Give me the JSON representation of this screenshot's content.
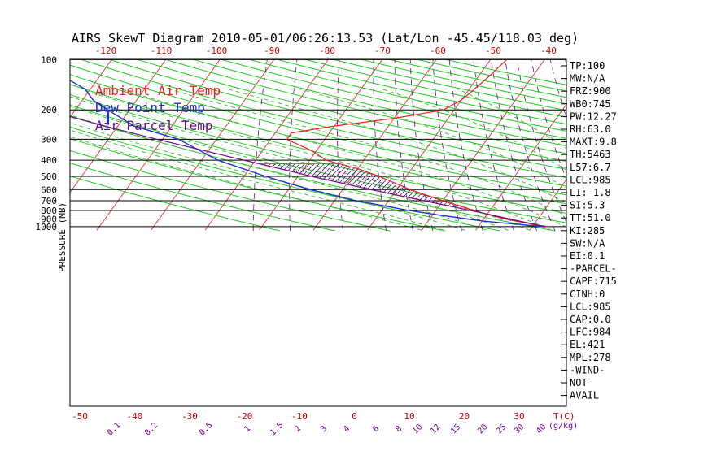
{
  "chart_data": {
    "type": "line",
    "title": "AIRS SkewT Diagram 2010-05-01/06:26:13.53 (Lat/Lon -45.45/118.03 deg)",
    "ylabel": "PRESSURE (MB)",
    "pressure_ticks": [
      "100",
      "200",
      "300",
      "400",
      "500",
      "600",
      "700",
      "800",
      "900",
      "1000"
    ],
    "bottom_temp_ticks": [
      "-50",
      "-40",
      "-30",
      "-20",
      "-10",
      "0",
      "10",
      "20",
      "30"
    ],
    "bottom_temp_unit": "T(C)",
    "top_temp_ticks": [
      "-120",
      "-110",
      "-100",
      "-90",
      "-80",
      "-70",
      "-60",
      "-50",
      "-40"
    ],
    "mixing_ratio_ticks": [
      "0.1",
      "0.2",
      "0.5",
      "1",
      "1.5",
      "2",
      "3",
      "4",
      "6",
      "8",
      "10",
      "12",
      "15",
      "20",
      "25",
      "30",
      "40"
    ],
    "mixing_ratio_unit": "(g/kg)",
    "legend": [
      {
        "label": "Ambient Air Temp",
        "color": "#e82020"
      },
      {
        "label": "Dew Point Temp",
        "color": "#2030d0"
      },
      {
        "label": "Air Parcel Temp",
        "color": "#6a0a8a"
      }
    ],
    "series": [
      {
        "name": "Ambient Air Temp",
        "color": "#e82020",
        "points": [
          [
            1000,
            13
          ],
          [
            975,
            10
          ],
          [
            950,
            8.5
          ],
          [
            925,
            6
          ],
          [
            900,
            4
          ],
          [
            850,
            0.5
          ],
          [
            800,
            -3
          ],
          [
            700,
            -10
          ],
          [
            600,
            -17.5
          ],
          [
            500,
            -25
          ],
          [
            450,
            -30
          ],
          [
            400,
            -37
          ],
          [
            350,
            -41
          ],
          [
            300,
            -47
          ],
          [
            275,
            -47
          ],
          [
            250,
            -40
          ],
          [
            225,
            -30
          ],
          [
            200,
            -22
          ],
          [
            175,
            -20
          ],
          [
            150,
            -19
          ],
          [
            125,
            -18
          ],
          [
            100,
            -17
          ]
        ]
      },
      {
        "name": "Dew Point Temp",
        "color": "#2030d0",
        "points": [
          [
            1000,
            12
          ],
          [
            975,
            8
          ],
          [
            950,
            4
          ],
          [
            925,
            0
          ],
          [
            900,
            -3
          ],
          [
            850,
            -9
          ],
          [
            800,
            -15
          ],
          [
            700,
            -26
          ],
          [
            600,
            -36
          ],
          [
            500,
            -46
          ],
          [
            400,
            -57
          ],
          [
            300,
            -67
          ],
          [
            250,
            -77
          ],
          [
            200,
            -84
          ],
          [
            175,
            -88
          ],
          [
            150,
            -91
          ],
          [
            125,
            -97
          ],
          [
            100,
            -102
          ]
        ]
      },
      {
        "name": "Air Parcel Temp",
        "color": "#6a0a8a",
        "points": [
          [
            1000,
            12.5
          ],
          [
            950,
            8.7
          ],
          [
            900,
            4.8
          ],
          [
            850,
            0.8
          ],
          [
            800,
            -3.6
          ],
          [
            700,
            -13.5
          ],
          [
            600,
            -24.8
          ],
          [
            500,
            -37.5
          ],
          [
            421,
            -48.8
          ],
          [
            400,
            -52.2
          ],
          [
            300,
            -71
          ],
          [
            250,
            -82.5
          ],
          [
            200,
            -95.5
          ],
          [
            150,
            -111
          ],
          [
            100,
            -132
          ]
        ]
      }
    ],
    "ylim": [
      1050,
      100
    ],
    "grid": true
  },
  "stats": [
    "TP:100",
    "MW:N/A",
    "FRZ:900",
    "WB0:745",
    "PW:12.27",
    "RH:63.0",
    "MAXT:9.8",
    "TH:5463",
    "L57:6.7",
    "LCL:985",
    "LI:-1.8",
    "SI:5.3",
    "TT:51.0",
    "KI:285",
    "SW:N/A",
    "EI:0.1",
    "-PARCEL-",
    "CAPE:715",
    "CINH:0",
    "LCL:985",
    "CAP:0.0",
    "LFC:984",
    "EL:421",
    "MPL:278",
    "-WIND-",
    "NOT",
    "AVAIL"
  ],
  "colors": {
    "ambient": "#e82020",
    "dewpoint": "#2030d0",
    "parcel": "#6a0a8a",
    "isotherm": "#e04040",
    "dry_adiabat": "#20cc20",
    "moist_adiabat": "#40c040",
    "mixing_ratio": "#6a0a8a",
    "axis_red": "#cc0000",
    "title": "#000000"
  }
}
